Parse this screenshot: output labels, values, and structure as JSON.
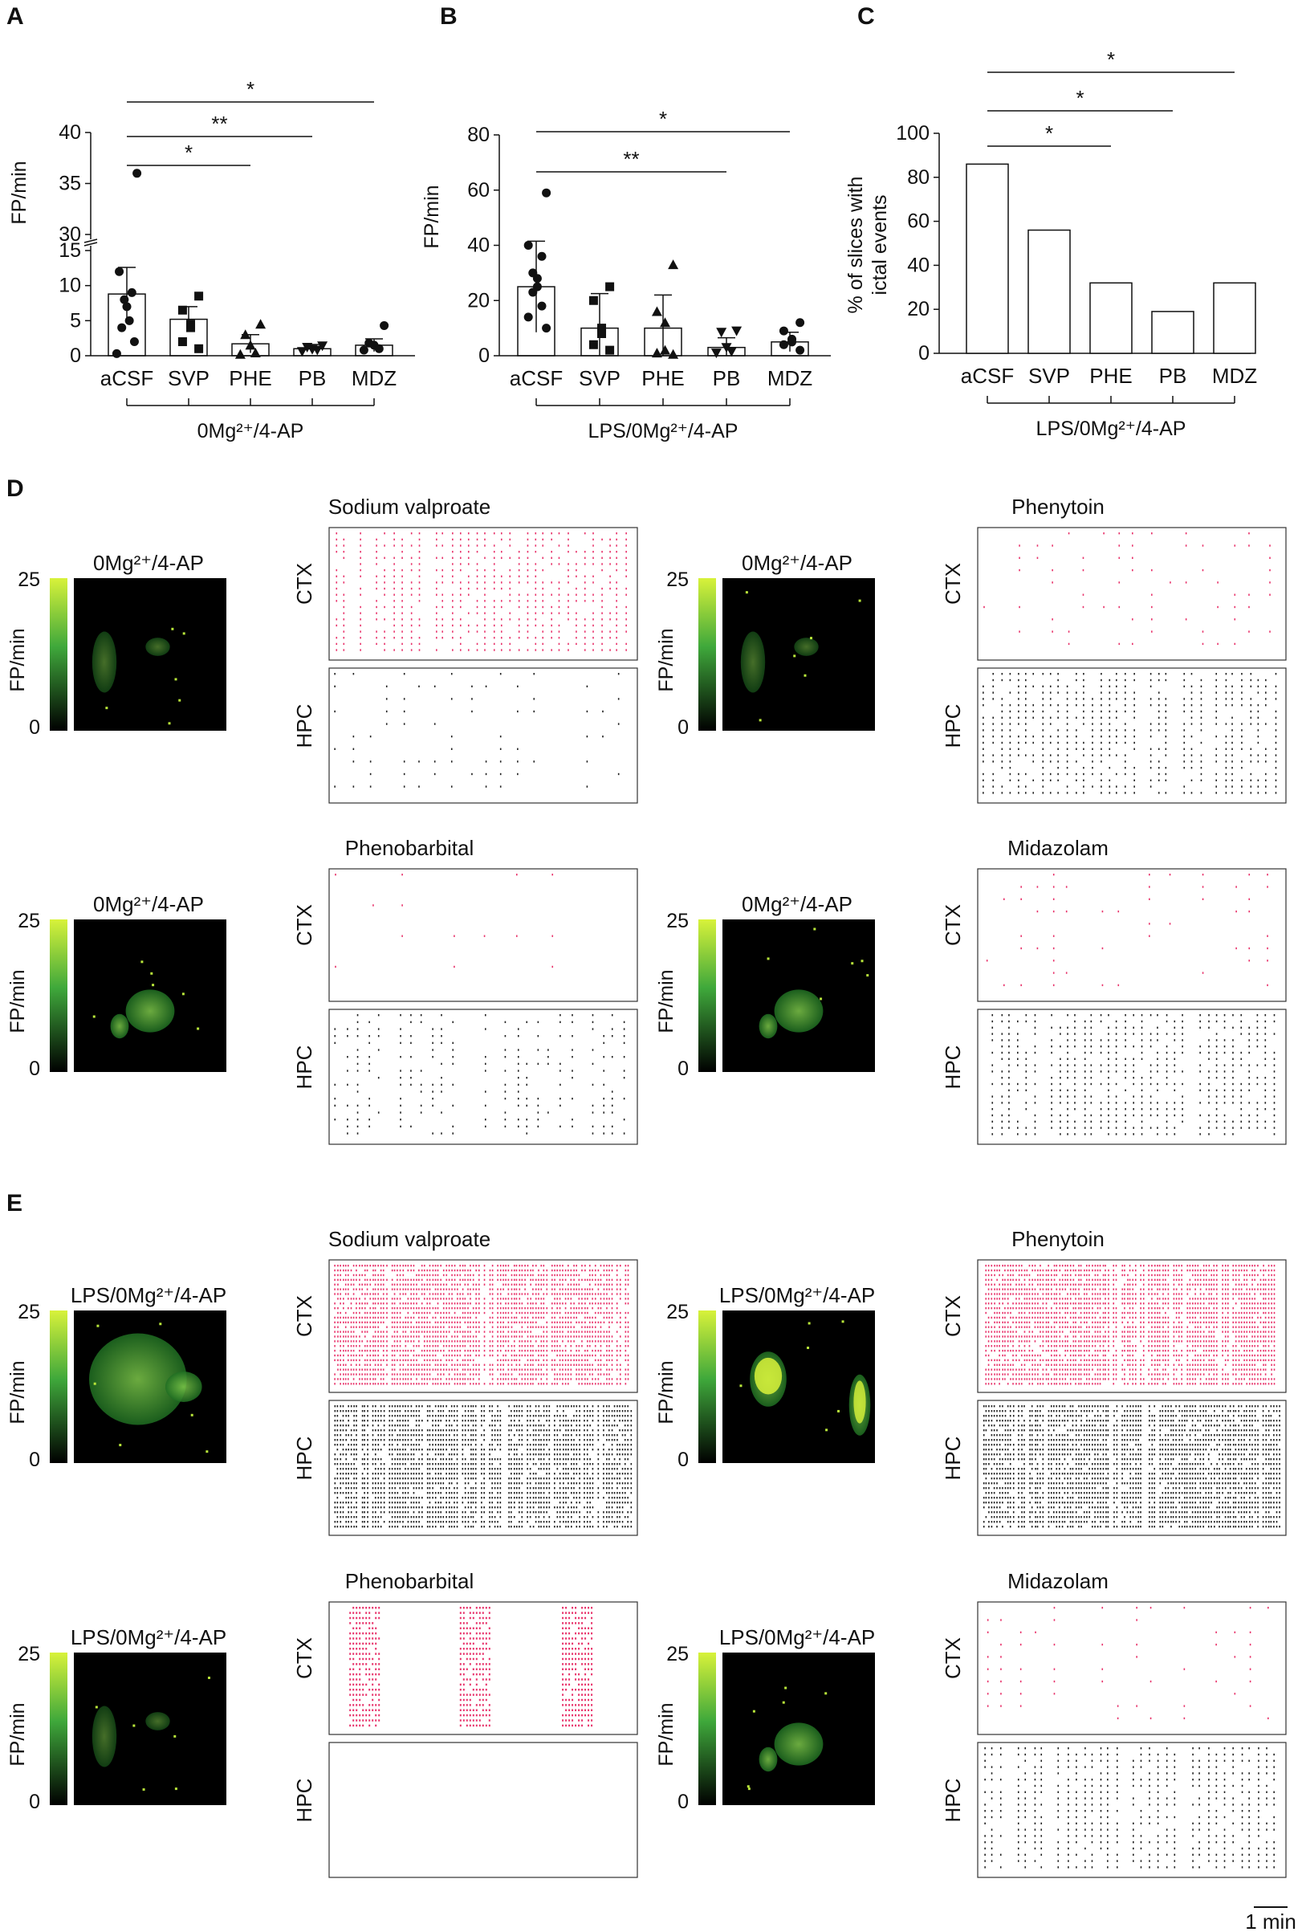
{
  "colors": {
    "raster_ctx": "#e8336b",
    "raster_hpc": "#222222",
    "map_bright": "#d8f23a",
    "map_mid": "#3fa83b",
    "map_dark": "#000000"
  },
  "panel_letters": [
    "A",
    "B",
    "C",
    "D",
    "E"
  ],
  "chart_data": [
    {
      "panel": "A",
      "type": "scatter",
      "ylabel": "FP/min",
      "categories": [
        "aCSF",
        "SVP",
        "PHE",
        "PB",
        "MDZ"
      ],
      "condition": "0Mg²⁺/4-AP",
      "broken_axis": true,
      "ylim_lower": [
        0,
        15
      ],
      "ylim_upper": [
        30,
        40
      ],
      "yticks": [
        0,
        5,
        10,
        15,
        30,
        35,
        40
      ],
      "ytick_labels": [
        "0",
        "5",
        "10",
        "15",
        "30",
        "35",
        "40"
      ],
      "means": [
        8.8,
        5.2,
        1.7,
        1.0,
        1.5
      ],
      "errors": [
        3.8,
        1.8,
        1.3,
        0.6,
        0.9
      ],
      "markers": [
        "circle",
        "square",
        "triangle",
        "down-triangle",
        "circle"
      ],
      "points": [
        [
          36,
          12,
          9,
          8,
          7,
          5,
          4,
          2,
          0.3
        ],
        [
          8.5,
          6.5,
          4.5,
          4,
          2,
          1
        ],
        [
          4.5,
          3,
          1.5,
          0.4,
          0.2
        ],
        [
          1.4,
          1.2,
          0.9,
          0.8,
          0.6
        ],
        [
          4.3,
          1.8,
          1.5,
          1.0,
          0.8
        ]
      ],
      "significance": [
        {
          "from": "aCSF",
          "to": "PHE",
          "label": "*"
        },
        {
          "from": "aCSF",
          "to": "PB",
          "label": "**"
        },
        {
          "from": "aCSF",
          "to": "MDZ",
          "label": "*"
        }
      ]
    },
    {
      "panel": "B",
      "type": "scatter",
      "ylabel": "FP/min",
      "categories": [
        "aCSF",
        "SVP",
        "PHE",
        "PB",
        "MDZ"
      ],
      "condition": "LPS/0Mg²⁺/4-AP",
      "ylim": [
        0,
        80
      ],
      "yticks": [
        0,
        20,
        40,
        60,
        80
      ],
      "ytick_labels": [
        "0",
        "20",
        "40",
        "60",
        "80"
      ],
      "means": [
        25,
        10,
        10,
        3,
        5
      ],
      "errors": [
        16.5,
        12.5,
        12.0,
        3.5,
        3.5
      ],
      "markers": [
        "circle",
        "square",
        "triangle",
        "down-triangle",
        "circle"
      ],
      "points": [
        [
          59,
          40,
          36,
          30,
          28,
          25,
          23,
          18,
          14,
          10
        ],
        [
          25,
          20,
          10,
          8,
          4,
          2
        ],
        [
          33,
          16,
          12,
          2,
          1,
          0.5
        ],
        [
          9,
          8.5,
          3,
          1.5,
          1
        ],
        [
          12,
          9,
          6,
          5,
          4,
          2
        ]
      ],
      "significance": [
        {
          "from": "aCSF",
          "to": "PB",
          "label": "**"
        },
        {
          "from": "aCSF",
          "to": "MDZ",
          "label": "*"
        }
      ]
    },
    {
      "panel": "C",
      "type": "bar",
      "ylabel": "% of slices with\nictal events",
      "ylabel_lines": [
        "% of slices with",
        "ictal events"
      ],
      "categories": [
        "aCSF",
        "SVP",
        "PHE",
        "PB",
        "MDZ"
      ],
      "condition": "LPS/0Mg²⁺/4-AP",
      "values": [
        86,
        56,
        32,
        19,
        32
      ],
      "ylim": [
        0,
        100
      ],
      "yticks": [
        0,
        20,
        40,
        60,
        80,
        100
      ],
      "ytick_labels": [
        "0",
        "20",
        "40",
        "60",
        "80",
        "100"
      ],
      "significance": [
        {
          "from": "aCSF",
          "to": "PHE",
          "label": "*"
        },
        {
          "from": "aCSF",
          "to": "PB",
          "label": "*"
        },
        {
          "from": "aCSF",
          "to": "MDZ",
          "label": "*"
        }
      ]
    }
  ],
  "raster_rows": {
    "D": [
      {
        "drug": "Sodium valproate",
        "map_title": "0Mg²⁺/4-AP",
        "colorbar_label": "FP/min",
        "colorbar_max": "25",
        "colorbar_min": "0",
        "ctx_label": "CTX",
        "hpc_label": "HPC",
        "ctx_density": "high",
        "hpc_density": "low"
      },
      {
        "drug": "Phenytoin",
        "map_title": "0Mg²⁺/4-AP",
        "colorbar_label": "FP/min",
        "colorbar_max": "25",
        "colorbar_min": "0",
        "ctx_label": "CTX",
        "hpc_label": "HPC",
        "ctx_density": "low",
        "hpc_density": "high"
      },
      {
        "drug": "Phenobarbital",
        "map_title": "0Mg²⁺/4-AP",
        "colorbar_label": "FP/min",
        "colorbar_max": "25",
        "colorbar_min": "0",
        "ctx_label": "CTX",
        "hpc_label": "HPC",
        "ctx_density": "sparse",
        "hpc_density": "medium"
      },
      {
        "drug": "Midazolam",
        "map_title": "0Mg²⁺/4-AP",
        "colorbar_label": "FP/min",
        "colorbar_max": "25",
        "colorbar_min": "0",
        "ctx_label": "CTX",
        "hpc_label": "HPC",
        "ctx_density": "low",
        "hpc_density": "high"
      }
    ],
    "E": [
      {
        "drug": "Sodium valproate",
        "map_title": "LPS/0Mg²⁺/4-AP",
        "colorbar_label": "FP/min",
        "colorbar_max": "25",
        "colorbar_min": "0",
        "ctx_label": "CTX",
        "hpc_label": "HPC",
        "ctx_density": "very-high",
        "hpc_density": "very-high"
      },
      {
        "drug": "Phenytoin",
        "map_title": "LPS/0Mg²⁺/4-AP",
        "colorbar_label": "FP/min",
        "colorbar_max": "25",
        "colorbar_min": "0",
        "ctx_label": "CTX",
        "hpc_label": "HPC",
        "ctx_density": "very-high",
        "hpc_density": "very-high"
      },
      {
        "drug": "Phenobarbital",
        "map_title": "LPS/0Mg²⁺/4-AP",
        "colorbar_label": "FP/min",
        "colorbar_max": "25",
        "colorbar_min": "0",
        "ctx_label": "CTX",
        "hpc_label": "HPC",
        "ctx_density": "bursts",
        "hpc_density": "none"
      },
      {
        "drug": "Midazolam",
        "map_title": "LPS/0Mg²⁺/4-AP",
        "colorbar_label": "FP/min",
        "colorbar_max": "25",
        "colorbar_min": "0",
        "ctx_label": "CTX",
        "hpc_label": "HPC",
        "ctx_density": "low",
        "hpc_density": "high"
      }
    ]
  },
  "scale_bar_label": "1 min"
}
